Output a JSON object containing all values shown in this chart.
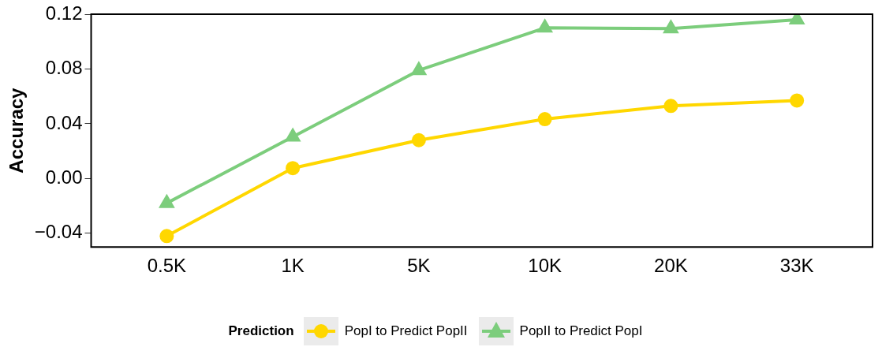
{
  "chart_data": {
    "type": "line",
    "ylabel": "Accuracy",
    "legend_title": "Prediction",
    "legend": "bottom",
    "grid": false,
    "categories": [
      "0.5K",
      "1K",
      "5K",
      "10K",
      "20K",
      "33K"
    ],
    "ylim": [
      -0.05,
      0.12
    ],
    "yticks": [
      {
        "value": -0.04,
        "label": "−0.04"
      },
      {
        "value": 0,
        "label": "0.00"
      },
      {
        "value": 0.04,
        "label": "0.04"
      },
      {
        "value": 0.08,
        "label": "0.08"
      },
      {
        "value": 0.12,
        "label": "0.12"
      }
    ],
    "line_style": "solid",
    "series": [
      {
        "name": "PopI to Predict PopII",
        "color": "#ffd700",
        "marker": "circle",
        "values": [
          -0.042,
          0.0076,
          0.028,
          0.0434,
          0.053,
          0.057
        ]
      },
      {
        "name": "PopII to Predict PopI",
        "color": "#7ccd7c",
        "marker": "triangle",
        "values": [
          -0.018,
          0.0305,
          0.079,
          0.11,
          0.1095,
          0.116
        ]
      }
    ]
  }
}
